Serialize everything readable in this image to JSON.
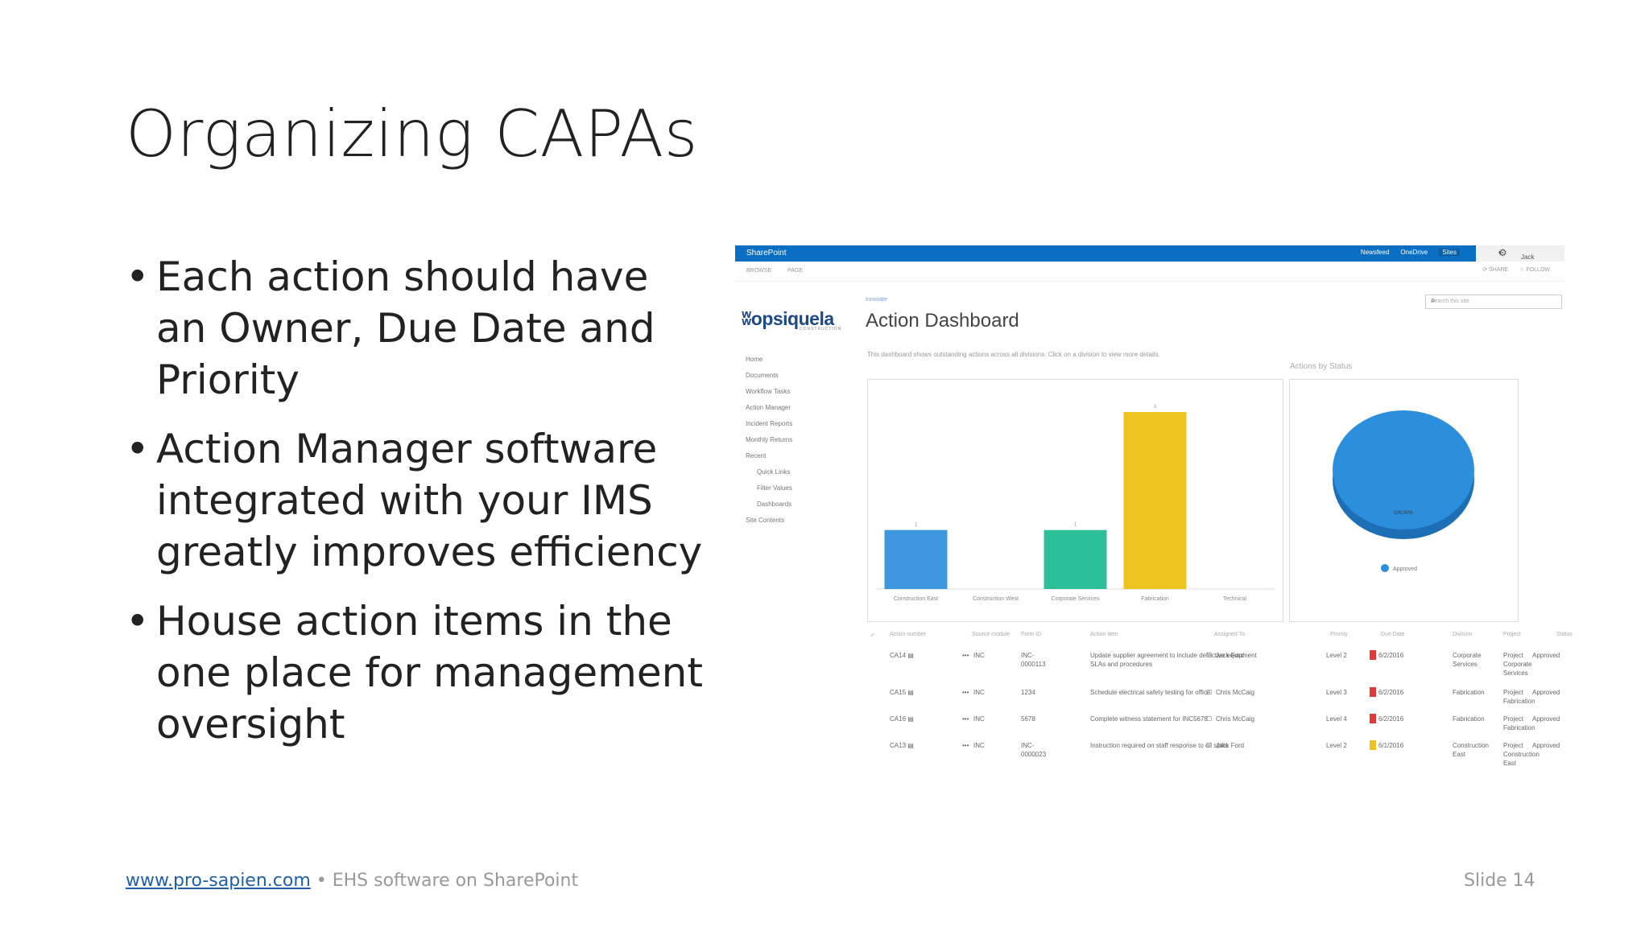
{
  "slide": {
    "title": "Organizing CAPAs",
    "bullets": [
      "Each action should have an Owner, Due Date and Priority",
      "Action Manager software integrated with your IMS greatly improves efficiency",
      "House action items in the one place for management oversight"
    ],
    "footer_link": "www.pro-sapien.com",
    "footer_text": " • EHS software on SharePoint",
    "slide_number": "Slide 14"
  },
  "screenshot": {
    "topbar": {
      "brand": "SharePoint",
      "links": [
        "Newsfeed",
        "OneDrive",
        "Sites"
      ],
      "user": "Jack Ford",
      "user_arrow": "▾"
    },
    "ribbon": {
      "tabs": [
        "BROWSE",
        "PAGE"
      ],
      "actions": [
        "SHARE",
        "FOLLOW"
      ]
    },
    "logo": "opsiquela",
    "logo_sub": "CONSTRUCTION",
    "breadcrumb": "Innovate",
    "page_title": "Action Dashboard",
    "search_placeholder": "Search this site",
    "left_nav": [
      "Home",
      "Documents",
      "Workflow Tasks",
      "Action Manager",
      "Incident Reports",
      "Monthly Returns",
      "Recent"
    ],
    "left_nav_sub": [
      "Quick Links",
      "Filter Values",
      "Dashboards"
    ],
    "left_nav_bottom": "Site Contents",
    "intro": "This dashboard shows outstanding actions across all divisions. Click on a division to view more details.",
    "pie_title": "Actions by Status",
    "chart_data": [
      {
        "type": "bar",
        "categories": [
          "Construction East",
          "Construction West",
          "Corporate Services",
          "Fabrication",
          "Technical"
        ],
        "values": [
          1,
          0,
          1,
          3,
          0
        ],
        "colors": [
          "#3d97e0",
          "#3d97e0",
          "#2bbf9a",
          "#edc41f",
          "#3d97e0"
        ],
        "data_labels": [
          "1",
          "",
          "1",
          "3",
          ""
        ]
      },
      {
        "type": "pie",
        "labels": [
          "Approved"
        ],
        "values": [
          100
        ],
        "data_labels": [
          "100.00%"
        ],
        "colors": [
          "#2b8fde"
        ],
        "legend": "bottom"
      }
    ],
    "table": {
      "headers": [
        "Action number",
        "Source module",
        "Form ID",
        "Action item",
        "Assigned To",
        "Priority",
        "Due Date",
        "Division",
        "Project",
        "Status"
      ],
      "rows": [
        {
          "num": "CA14",
          "mod": "INC",
          "form": "INC-0000113",
          "item": "Update supplier agreement to include defective equipment SLAs and procedures",
          "to": "Jack Ford",
          "pri": "Level 2",
          "color": "#e03a3a",
          "due": "6/2/2016",
          "div": "Corporate Services",
          "proj": "Project Corporate Services",
          "status": "Approved"
        },
        {
          "num": "CA15",
          "mod": "INC",
          "form": "1234",
          "item": "Schedule electrical safety testing for office",
          "to": "Chris McCaig",
          "pri": "Level 3",
          "color": "#e03a3a",
          "due": "6/2/2016",
          "div": "Fabrication",
          "proj": "Project Fabrication",
          "status": "Approved"
        },
        {
          "num": "CA16",
          "mod": "INC",
          "form": "5678",
          "item": "Complete witness statement for INC5678",
          "to": "Chris McCaig",
          "pri": "Level 4",
          "color": "#e03a3a",
          "due": "6/2/2016",
          "div": "Fabrication",
          "proj": "Project Fabrication",
          "status": "Approved"
        },
        {
          "num": "CA13",
          "mod": "INC",
          "form": "INC-0000023",
          "item": "Instruction required on staff response to oil spills",
          "to": "Jack Ford",
          "pri": "Level 2",
          "color": "#edc41f",
          "due": "6/1/2016",
          "div": "Construction East",
          "proj": "Project Construction East",
          "status": "Approved"
        }
      ]
    }
  }
}
